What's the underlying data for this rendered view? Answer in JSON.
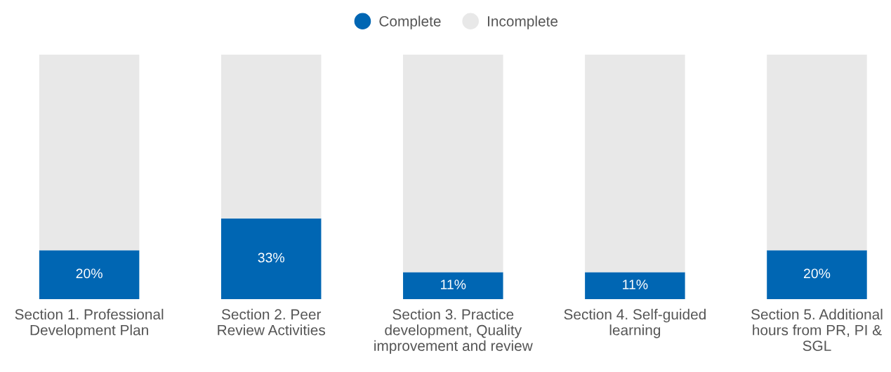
{
  "chart_data": {
    "type": "bar",
    "stacked": true,
    "categories": [
      "Section 1. Professional\nDevelopment Plan",
      "Section 2. Peer\nReview Activities",
      "Section 3. Practice\ndevelopment, Quality\nimprovement and review",
      "Section 4. Self-guided\nlearning",
      "Section 5. Additional\nhours from PR, PI &\nSGL"
    ],
    "series": [
      {
        "name": "Complete",
        "color": "#0066b3",
        "values": [
          20,
          33,
          11,
          11,
          20
        ],
        "value_labels": [
          "20%",
          "33%",
          "11%",
          "11%",
          "20%"
        ]
      },
      {
        "name": "Incomplete",
        "color": "#e8e8e8",
        "values": [
          80,
          67,
          89,
          89,
          80
        ]
      }
    ],
    "legend": "top",
    "grid": false
  }
}
